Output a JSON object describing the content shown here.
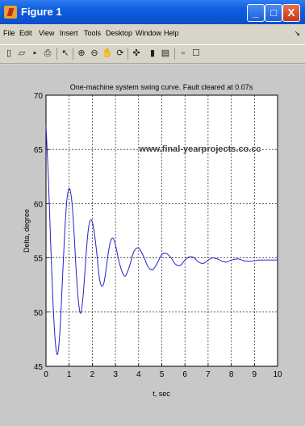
{
  "window": {
    "title": "Figure 1",
    "controls": {
      "minimize": "_",
      "maximize": "□",
      "close": "X"
    }
  },
  "menu": [
    "File",
    "Edit",
    "View",
    "Insert",
    "Tools",
    "Desktop",
    "Window",
    "Help"
  ],
  "toolbar": [
    {
      "name": "new-figure-icon",
      "glyph": "▯"
    },
    {
      "name": "open-file-icon",
      "glyph": "▱"
    },
    {
      "name": "save-icon",
      "glyph": "▪"
    },
    {
      "name": "print-icon",
      "glyph": "⎙"
    },
    {
      "name": "edit-plot-arrow-icon",
      "glyph": "↖"
    },
    {
      "name": "zoom-in-icon",
      "glyph": "⊕"
    },
    {
      "name": "zoom-out-icon",
      "glyph": "⊖"
    },
    {
      "name": "pan-hand-icon",
      "glyph": "✋"
    },
    {
      "name": "rotate-3d-icon",
      "glyph": "⟳"
    },
    {
      "name": "data-cursor-icon",
      "glyph": "✜"
    },
    {
      "name": "colorbar-icon",
      "glyph": "▮"
    },
    {
      "name": "legend-icon",
      "glyph": "▤"
    },
    {
      "name": "hide-plot-tools-icon",
      "glyph": "▫"
    },
    {
      "name": "show-plot-tools-icon",
      "glyph": "☐"
    }
  ],
  "chart_data": {
    "type": "line",
    "title": "One-machine system swing curve. Fault cleared at 0.07s",
    "xlabel": "t, sec",
    "ylabel": "Delta, degree",
    "xlim": [
      0,
      10
    ],
    "ylim": [
      45,
      70
    ],
    "xticks": [
      0,
      1,
      2,
      3,
      4,
      5,
      6,
      7,
      8,
      9,
      10
    ],
    "yticks": [
      45,
      50,
      55,
      60,
      65,
      70
    ],
    "grid": true,
    "line_color": "#2222cc",
    "watermark": "www.final-yearprojects.co.cc",
    "series": [
      {
        "name": "",
        "x": [
          0,
          0.1,
          0.2,
          0.3,
          0.4,
          0.5,
          0.6,
          0.7,
          0.8,
          0.9,
          1.0,
          1.1,
          1.2,
          1.3,
          1.4,
          1.5,
          1.6,
          1.7,
          1.8,
          1.9,
          2.0,
          2.1,
          2.2,
          2.3,
          2.4,
          2.5,
          2.6,
          2.7,
          2.8,
          2.9,
          3.0,
          3.2,
          3.4,
          3.6,
          3.8,
          4.0,
          4.2,
          4.4,
          4.6,
          4.8,
          5.0,
          5.2,
          5.4,
          5.6,
          5.8,
          6.0,
          6.2,
          6.4,
          6.6,
          6.8,
          7.0,
          7.2,
          7.4,
          7.6,
          7.8,
          8.0,
          8.3,
          8.6,
          8.9,
          9.2,
          9.5,
          9.8,
          10.0
        ],
        "y": [
          67.2,
          62.5,
          56.5,
          51.0,
          47.3,
          46.1,
          48.2,
          52.5,
          57.0,
          60.3,
          61.4,
          60.5,
          57.8,
          53.9,
          51.0,
          49.9,
          51.4,
          54.3,
          57.1,
          58.4,
          58.3,
          57.1,
          55.3,
          53.2,
          52.4,
          52.7,
          54.0,
          55.6,
          56.6,
          56.8,
          56.2,
          54.3,
          53.3,
          54.2,
          55.6,
          55.9,
          55.2,
          54.2,
          53.9,
          54.5,
          55.3,
          55.4,
          55.0,
          54.4,
          54.3,
          54.8,
          55.1,
          55.0,
          54.6,
          54.5,
          54.8,
          55.0,
          54.9,
          54.7,
          54.6,
          54.8,
          54.9,
          54.7,
          54.7,
          54.8,
          54.8,
          54.8,
          54.8
        ]
      }
    ]
  }
}
